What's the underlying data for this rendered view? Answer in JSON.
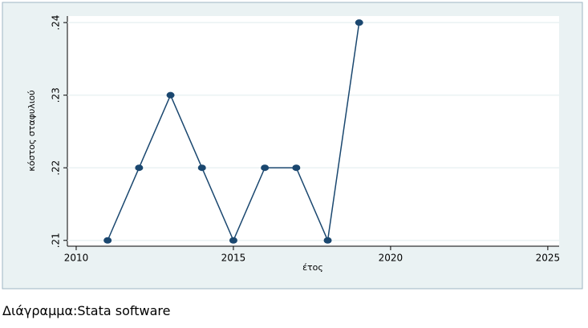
{
  "chart_data": {
    "type": "line",
    "x": [
      2011,
      2012,
      2013,
      2014,
      2015,
      2016,
      2017,
      2018,
      2019
    ],
    "series": [
      {
        "name": "κόστος σταφυλιού",
        "color": "#1a476f",
        "values": [
          0.21,
          0.22,
          0.23,
          0.22,
          0.21,
          0.22,
          0.22,
          0.21,
          0.24
        ]
      }
    ],
    "x_label": "έτος",
    "y_label": "κόστος σταφυλιού",
    "xlim": [
      2009.72,
      2025.36
    ],
    "xticks": [
      2010,
      2015,
      2020,
      2025
    ],
    "ylim": [
      0.2092,
      0.2409
    ],
    "yticks": [
      {
        "value": 0.21,
        "label": ".21"
      },
      {
        "value": 0.22,
        "label": ".22"
      },
      {
        "value": 0.23,
        "label": ".23"
      },
      {
        "value": 0.24,
        "label": ".24"
      }
    ],
    "grid": true
  },
  "caption": "Διάγραμμα:Stata software"
}
